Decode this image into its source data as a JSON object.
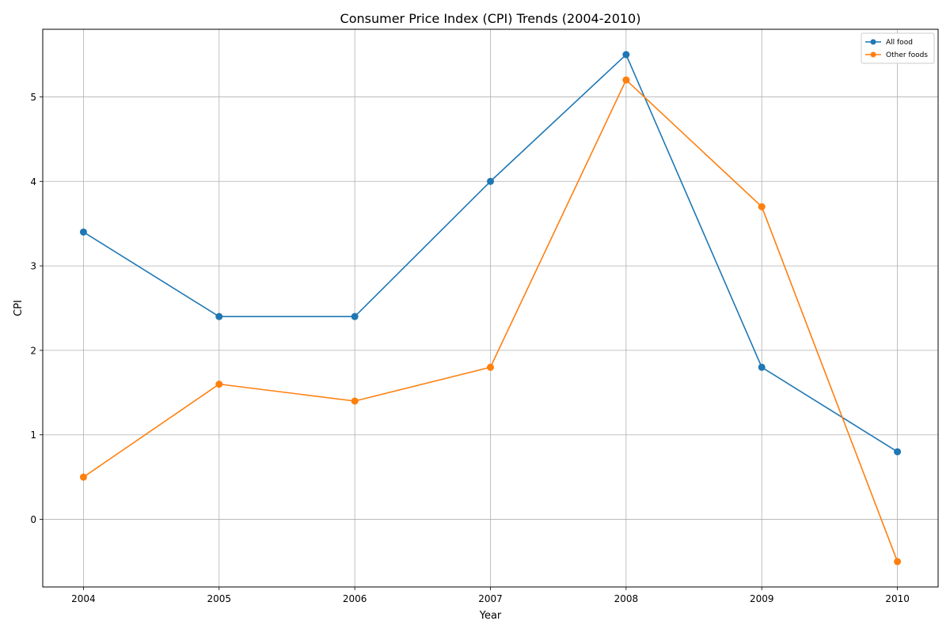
{
  "chart_data": {
    "type": "line",
    "title": "Consumer Price Index (CPI) Trends (2004-2010)",
    "xlabel": "Year",
    "ylabel": "CPI",
    "x": [
      2004,
      2005,
      2006,
      2007,
      2008,
      2009,
      2010
    ],
    "xlim": [
      2003.7,
      2010.3
    ],
    "ylim": [
      -0.8,
      5.8
    ],
    "yticks": [
      0,
      1,
      2,
      3,
      4,
      5
    ],
    "grid": true,
    "legend_position": "top-right",
    "series": [
      {
        "name": "All food",
        "color": "#1f77b4",
        "marker": "circle",
        "values": [
          3.4,
          2.4,
          2.4,
          4.0,
          5.5,
          1.8,
          0.8
        ]
      },
      {
        "name": "Other foods",
        "color": "#ff7f0e",
        "marker": "circle",
        "values": [
          0.5,
          1.6,
          1.4,
          1.8,
          5.2,
          3.7,
          -0.5
        ]
      }
    ]
  }
}
